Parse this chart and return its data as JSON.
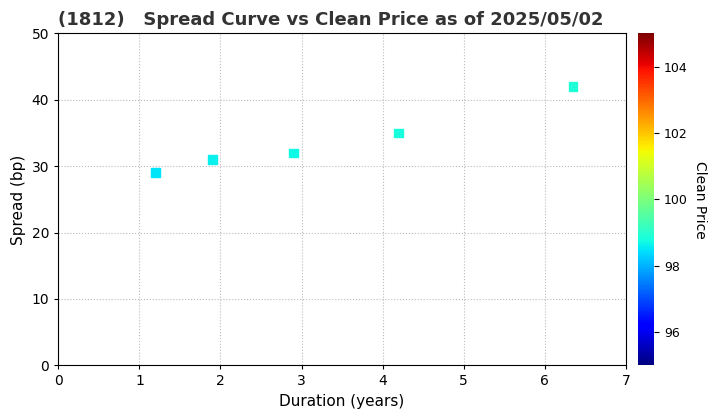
{
  "title": "(1812)   Spread Curve vs Clean Price as of 2025/05/02",
  "xlabel": "Duration (years)",
  "ylabel": "Spread (bp)",
  "colorbar_label": "Clean Price",
  "points": [
    {
      "duration": 1.2,
      "spread": 29,
      "clean_price": 98.5
    },
    {
      "duration": 1.9,
      "spread": 31,
      "clean_price": 98.6
    },
    {
      "duration": 2.9,
      "spread": 32,
      "clean_price": 98.7
    },
    {
      "duration": 4.2,
      "spread": 35,
      "clean_price": 98.8
    },
    {
      "duration": 6.35,
      "spread": 42,
      "clean_price": 98.9
    }
  ],
  "xlim": [
    0,
    7
  ],
  "ylim": [
    0,
    50
  ],
  "xticks": [
    0,
    1,
    2,
    3,
    4,
    5,
    6,
    7
  ],
  "yticks": [
    0,
    10,
    20,
    30,
    40,
    50
  ],
  "cmap": "jet",
  "clim": [
    95,
    105
  ],
  "colorbar_ticks": [
    96,
    98,
    100,
    102,
    104
  ],
  "marker_size": 40,
  "marker": "s",
  "figsize": [
    7.2,
    4.2
  ],
  "dpi": 100,
  "bg_color": "#ffffff",
  "grid_color": "#aaaaaa",
  "grid_alpha": 0.8,
  "title_fontsize": 13,
  "axis_label_fontsize": 11,
  "tick_fontsize": 10,
  "cbar_label_fontsize": 10,
  "cbar_tick_fontsize": 9
}
